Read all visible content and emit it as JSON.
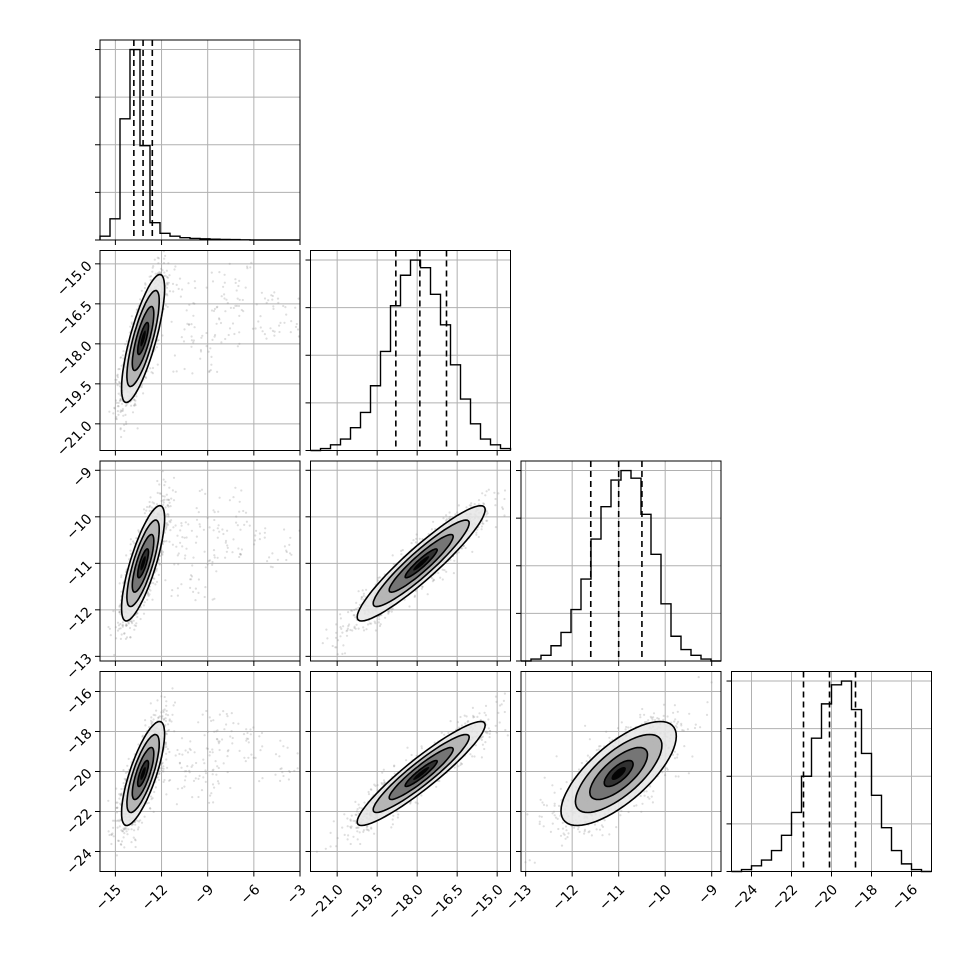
{
  "chart_data": {
    "type": "corner",
    "grid": true,
    "params": [
      {
        "range": [
          -16,
          -3
        ],
        "ticks": [
          -15,
          -12,
          -9,
          -6,
          -3
        ],
        "tick_labels": [
          "−15",
          "−12",
          "−9",
          "−6",
          "−3"
        ],
        "quantiles": [
          -13.8,
          -13.2,
          -12.6
        ],
        "hist": [
          0.02,
          0.11,
          0.63,
          0.99,
          0.49,
          0.09,
          0.035,
          0.02,
          0.012,
          0.008,
          0.006,
          0.004,
          0.003,
          0.002,
          0.001,
          0,
          0,
          0,
          0,
          0
        ],
        "hist_ticks": 4
      },
      {
        "range": [
          -22.0,
          -14.5
        ],
        "ticks": [
          -21.0,
          -19.5,
          -18.0,
          -16.5,
          -15.0
        ],
        "tick_labels": [
          "−21.0",
          "−19.5",
          "−18.0",
          "−16.5",
          "−15.0"
        ],
        "quantiles": [
          -18.8,
          -17.9,
          -16.9
        ],
        "hist": [
          0.0,
          0.01,
          0.03,
          0.06,
          0.12,
          0.2,
          0.34,
          0.52,
          0.76,
          0.92,
          1.0,
          0.96,
          0.82,
          0.66,
          0.45,
          0.27,
          0.14,
          0.06,
          0.03,
          0.01
        ],
        "hist_ticks": 4
      },
      {
        "range": [
          -13.1,
          -8.8
        ],
        "ticks": [
          -13,
          -12,
          -11,
          -10,
          -9
        ],
        "tick_labels": [
          "−13",
          "−12",
          "−11",
          "−10",
          "−9"
        ],
        "quantiles": [
          -11.6,
          -11.0,
          -10.5
        ],
        "hist": [
          0.0,
          0.01,
          0.03,
          0.08,
          0.15,
          0.27,
          0.43,
          0.64,
          0.81,
          0.95,
          1.0,
          0.96,
          0.77,
          0.56,
          0.3,
          0.13,
          0.06,
          0.03,
          0.01,
          0.0
        ],
        "hist_ticks": 4
      },
      {
        "range": [
          -25,
          -15
        ],
        "ticks": [
          -24,
          -22,
          -20,
          -18,
          -16
        ],
        "tick_labels": [
          "−24",
          "−22",
          "−20",
          "−18",
          "−16"
        ],
        "quantiles": [
          -21.4,
          -20.1,
          -18.8
        ],
        "hist": [
          0.0,
          0.01,
          0.03,
          0.06,
          0.11,
          0.19,
          0.31,
          0.5,
          0.7,
          0.88,
          0.98,
          1.0,
          0.85,
          0.62,
          0.4,
          0.23,
          0.11,
          0.04,
          0.01,
          0.0
        ],
        "hist_ticks": 4
      }
    ],
    "pairs": [
      {
        "row": 1,
        "col": 0,
        "mean": [
          -13.2,
          -17.8
        ],
        "sd": [
          0.7,
          1.2
        ],
        "rho": 0.78,
        "tail": [
          [
            -11.5,
            -16.5
          ],
          [
            -8.5,
            -17.2
          ],
          [
            -6.0,
            -16.8
          ],
          [
            -10.0,
            -18.2
          ],
          [
            -7.5,
            -15.9
          ],
          [
            -4.5,
            -16.9
          ]
        ]
      },
      {
        "row": 2,
        "col": 0,
        "mean": [
          -13.2,
          -11.0
        ],
        "sd": [
          0.7,
          0.62
        ],
        "rho": 0.78,
        "tail": [
          [
            -11.5,
            -10.3
          ],
          [
            -9.5,
            -10.6
          ],
          [
            -7.0,
            -10.4
          ],
          [
            -10.0,
            -11.3
          ],
          [
            -8.0,
            -9.8
          ],
          [
            -4.0,
            -10.6
          ]
        ]
      },
      {
        "row": 2,
        "col": 1,
        "mean": [
          -17.85,
          -11.0
        ],
        "sd": [
          1.2,
          0.62
        ],
        "rho": 0.93,
        "tail": []
      },
      {
        "row": 3,
        "col": 0,
        "mean": [
          -13.2,
          -20.1
        ],
        "sd": [
          0.7,
          1.3
        ],
        "rho": 0.76,
        "tail": [
          [
            -11.5,
            -19.0
          ],
          [
            -9.0,
            -19.8
          ],
          [
            -7.0,
            -18.6
          ],
          [
            -10.0,
            -20.6
          ],
          [
            -8.0,
            -18.0
          ],
          [
            -4.5,
            -19.5
          ]
        ]
      },
      {
        "row": 3,
        "col": 1,
        "mean": [
          -17.85,
          -20.1
        ],
        "sd": [
          1.2,
          1.3
        ],
        "rho": 0.93,
        "tail": []
      },
      {
        "row": 3,
        "col": 2,
        "mean": [
          -11.0,
          -20.1
        ],
        "sd": [
          0.62,
          1.3
        ],
        "rho": 0.72,
        "tail": []
      }
    ]
  }
}
